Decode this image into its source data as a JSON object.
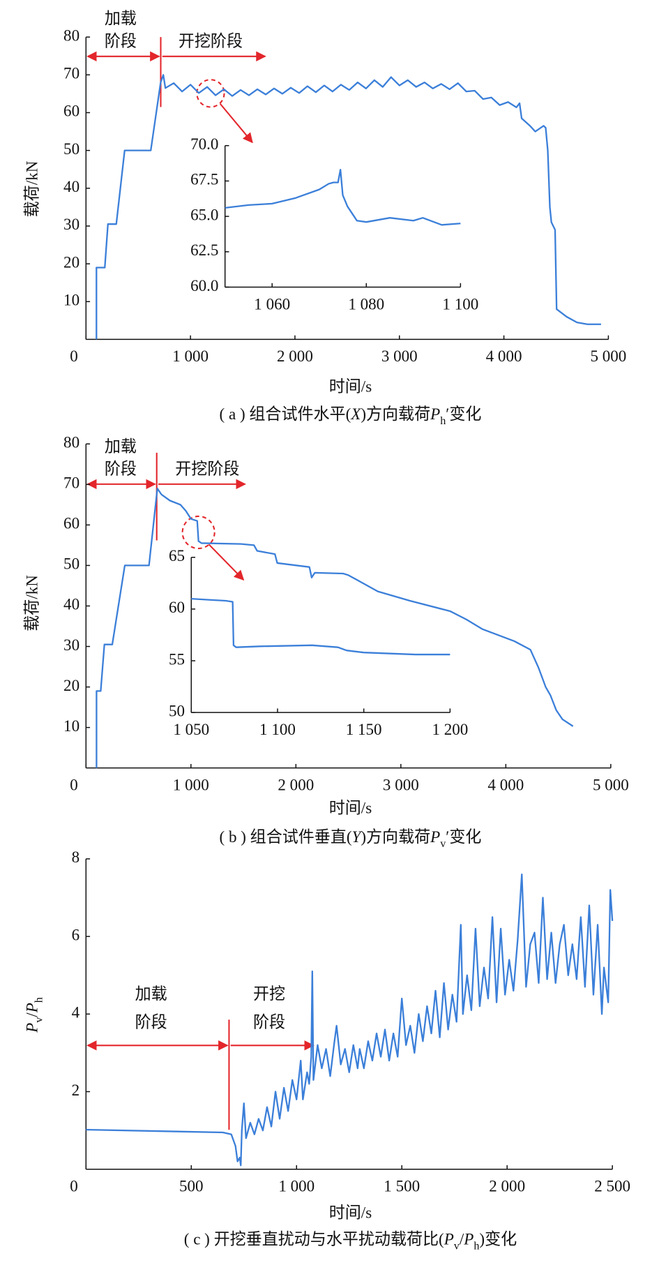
{
  "chart_data": [
    {
      "type": "line",
      "color": "#3b7fd9",
      "caption": [
        {
          "text": "( a ) 组合试件水平("
        },
        {
          "text": "X",
          "style": "italic"
        },
        {
          "text": ")方向载荷"
        },
        {
          "text": "P",
          "style": "italic"
        },
        {
          "text": "h",
          "style": "sub"
        },
        {
          "text": "′"
        },
        {
          "text": "变化"
        }
      ],
      "xlabel": [
        {
          "text": "时间/s"
        }
      ],
      "ylabel": [
        {
          "text": "载荷/kN"
        }
      ],
      "annotations": [
        "加载",
        "阶段",
        "开挖阶段"
      ],
      "xlim": [
        0,
        5000
      ],
      "ylim": [
        0,
        80
      ],
      "xticks": [
        0,
        {
          "value": 1000,
          "label": "1 000"
        },
        {
          "value": 2000,
          "label": "2 000"
        },
        {
          "value": 3000,
          "label": "3 000"
        },
        {
          "value": 4000,
          "label": "4 000"
        },
        {
          "value": 5000,
          "label": "5 000"
        }
      ],
      "yticks": [
        10,
        20,
        30,
        40,
        50,
        60,
        70,
        80
      ],
      "x": [
        100,
        100,
        180,
        210,
        290,
        370,
        620,
        715,
        740,
        760,
        840,
        920,
        1000,
        1080,
        1160,
        1240,
        1320,
        1400,
        1480,
        1560,
        1640,
        1720,
        1800,
        1880,
        1960,
        2040,
        2120,
        2200,
        2280,
        2360,
        2440,
        2520,
        2600,
        2680,
        2760,
        2840,
        2920,
        3000,
        3080,
        3160,
        3240,
        3320,
        3400,
        3480,
        3560,
        3640,
        3720,
        3800,
        3880,
        3960,
        4040,
        4120,
        4150,
        4170,
        4250,
        4300,
        4380,
        4400,
        4420,
        4440,
        4455,
        4490,
        4505,
        4600,
        4700,
        4800,
        4930
      ],
      "values": [
        0,
        19,
        19,
        30.5,
        30.5,
        50,
        50,
        68,
        70,
        66.5,
        67.8,
        65.6,
        67.4,
        65.2,
        66.8,
        64.6,
        66.2,
        64.4,
        66.0,
        64.6,
        66.2,
        64.8,
        66.4,
        65.0,
        66.6,
        65.2,
        67.0,
        65.4,
        67.2,
        65.6,
        67.4,
        66.0,
        68.0,
        66.4,
        68.6,
        66.8,
        69.4,
        67.2,
        68.6,
        66.8,
        68.0,
        66.4,
        67.6,
        66.2,
        67.8,
        65.6,
        65.8,
        63.6,
        64.0,
        62.0,
        62.8,
        61.4,
        62.5,
        58.5,
        56.5,
        55,
        56.5,
        56,
        50,
        35,
        31,
        29,
        8,
        6,
        4.5,
        4,
        4
      ],
      "inset": {
        "xlim": [
          1050,
          1100
        ],
        "ylim": [
          60,
          70
        ],
        "xticks": [
          {
            "value": 1060,
            "label": "1 060"
          },
          {
            "value": 1080,
            "label": "1 080"
          },
          {
            "value": 1100,
            "label": "1 100"
          }
        ],
        "yticks": [
          {
            "value": 60,
            "label": "60.0"
          },
          62.5,
          {
            "value": 65,
            "label": "65.0"
          },
          67.5,
          {
            "value": 70,
            "label": "70.0"
          }
        ],
        "x": [
          1050,
          1055,
          1060,
          1065,
          1070,
          1072,
          1073,
          1074,
          1074.5,
          1075,
          1076,
          1078,
          1080,
          1085,
          1090,
          1092,
          1096,
          1100
        ],
        "values": [
          65.6,
          65.8,
          65.9,
          66.3,
          66.9,
          67.3,
          67.4,
          67.4,
          68.3,
          66.5,
          65.7,
          64.7,
          64.6,
          64.9,
          64.7,
          64.9,
          64.4,
          64.5
        ]
      }
    },
    {
      "type": "line",
      "color": "#3b7fd9",
      "caption": [
        {
          "text": "( b ) 组合试件垂直("
        },
        {
          "text": "Y",
          "style": "italic"
        },
        {
          "text": ")方向载荷"
        },
        {
          "text": "P",
          "style": "italic"
        },
        {
          "text": "v",
          "style": "sub"
        },
        {
          "text": "′"
        },
        {
          "text": "变化"
        }
      ],
      "xlabel": [
        {
          "text": "时间/s"
        }
      ],
      "ylabel": [
        {
          "text": "载荷/kN"
        }
      ],
      "annotations": [
        "加载",
        "阶段",
        "开挖阶段"
      ],
      "xlim": [
        0,
        5000
      ],
      "ylim": [
        0,
        80
      ],
      "xticks": [
        0,
        {
          "value": 1000,
          "label": "1 000"
        },
        {
          "value": 2000,
          "label": "2 000"
        },
        {
          "value": 3000,
          "label": "3 000"
        },
        {
          "value": 4000,
          "label": "4 000"
        },
        {
          "value": 5000,
          "label": "5 000"
        }
      ],
      "yticks": [
        10,
        20,
        30,
        40,
        50,
        60,
        70,
        80
      ],
      "x": [
        100,
        100,
        140,
        175,
        250,
        370,
        600,
        680,
        720,
        800,
        900,
        950,
        1000,
        1060,
        1072,
        1100,
        1478,
        1600,
        1631,
        1800,
        1822,
        2129,
        2150,
        2180,
        2450,
        2500,
        2780,
        3086,
        3469,
        3622,
        3775,
        4081,
        4234,
        4311,
        4380,
        4426,
        4480,
        4540,
        4640
      ],
      "values": [
        0,
        19,
        19,
        30.5,
        30.5,
        50,
        50,
        69,
        67.5,
        66,
        65,
        63.5,
        61.5,
        61,
        56,
        55.5,
        55.3,
        55,
        53.6,
        52.8,
        50.6,
        49.6,
        47,
        48.2,
        48,
        47.6,
        43.6,
        41.3,
        38.7,
        36.7,
        34.3,
        31.3,
        29.2,
        24.8,
        20,
        17.9,
        14.3,
        12,
        10.3
      ],
      "inset": {
        "xlim": [
          1050,
          1200
        ],
        "ylim": [
          50,
          65
        ],
        "xticks": [
          {
            "value": 1050,
            "label": "1 050"
          },
          {
            "value": 1100,
            "label": "1 100"
          },
          {
            "value": 1150,
            "label": "1 150"
          },
          {
            "value": 1200,
            "label": "1 200"
          }
        ],
        "yticks": [
          50,
          55,
          60,
          65
        ],
        "x": [
          1050,
          1060,
          1070,
          1074,
          1074.5,
          1076,
          1090,
          1120,
          1135,
          1140,
          1150,
          1180,
          1200
        ],
        "values": [
          61,
          60.9,
          60.8,
          60.7,
          56.5,
          56.3,
          56.4,
          56.5,
          56.3,
          56,
          55.8,
          55.6,
          55.6
        ]
      }
    },
    {
      "type": "line",
      "color": "#3b7fd9",
      "caption": [
        {
          "text": "( c ) 开挖垂直扰动与水平扰动载荷比("
        },
        {
          "text": "P",
          "style": "italic"
        },
        {
          "text": "v",
          "style": "sub"
        },
        {
          "text": "/"
        },
        {
          "text": "P",
          "style": "italic"
        },
        {
          "text": "h",
          "style": "sub"
        },
        {
          "text": ")变化"
        }
      ],
      "xlabel": [
        {
          "text": "时间/s"
        }
      ],
      "ylabel": [
        {
          "text": "P",
          "style": "italic"
        },
        {
          "text": "v",
          "style": "sub"
        },
        {
          "text": "/"
        },
        {
          "text": "P",
          "style": "italic"
        },
        {
          "text": "h",
          "style": "sub"
        }
      ],
      "annotations": [
        "加载",
        "阶段",
        "开挖",
        "阶段"
      ],
      "xlim": [
        0,
        2500
      ],
      "ylim": [
        0,
        8
      ],
      "xticks": [
        0,
        500,
        {
          "value": 1000,
          "label": "1 000"
        },
        {
          "value": 1500,
          "label": "1 500"
        },
        {
          "value": 2000,
          "label": "2 000"
        },
        {
          "value": 2500,
          "label": "2 500"
        }
      ],
      "yticks": [
        2,
        4,
        6,
        8
      ],
      "x": [
        0,
        650,
        690,
        710,
        720,
        730,
        735,
        740,
        750,
        760,
        780,
        800,
        820,
        840,
        860,
        880,
        900,
        920,
        940,
        960,
        980,
        1000,
        1020,
        1030,
        1050,
        1060,
        1070,
        1075,
        1080,
        1100,
        1120,
        1140,
        1160,
        1180,
        1190,
        1210,
        1230,
        1250,
        1270,
        1290,
        1300,
        1320,
        1340,
        1360,
        1380,
        1400,
        1420,
        1440,
        1460,
        1480,
        1500,
        1520,
        1540,
        1560,
        1580,
        1600,
        1620,
        1640,
        1660,
        1680,
        1700,
        1720,
        1740,
        1760,
        1780,
        1790,
        1810,
        1830,
        1850,
        1870,
        1890,
        1910,
        1930,
        1950,
        1970,
        1990,
        2010,
        2030,
        2050,
        2070,
        2090,
        2110,
        2130,
        2150,
        2170,
        2190,
        2210,
        2230,
        2250,
        2270,
        2290,
        2310,
        2330,
        2350,
        2370,
        2390,
        2410,
        2430,
        2450,
        2460,
        2480,
        2490,
        2500
      ],
      "values": [
        1.02,
        0.95,
        0.9,
        0.6,
        0.2,
        0.3,
        0.1,
        1.0,
        1.7,
        0.8,
        1.2,
        0.9,
        1.3,
        1.0,
        1.6,
        1.1,
        2.0,
        1.3,
        2.1,
        1.5,
        2.3,
        1.8,
        2.8,
        1.8,
        2.5,
        2.2,
        2.9,
        5.1,
        2.3,
        3.2,
        2.6,
        3.1,
        2.4,
        3.3,
        3.7,
        2.7,
        3.1,
        2.5,
        3.2,
        2.6,
        3.1,
        2.6,
        3.3,
        2.8,
        3.5,
        2.9,
        3.6,
        2.8,
        3.5,
        2.9,
        4.4,
        3.2,
        3.7,
        3.0,
        4.0,
        3.3,
        4.2,
        3.5,
        4.6,
        3.4,
        4.8,
        3.6,
        4.5,
        3.8,
        6.3,
        4.0,
        5.0,
        4.1,
        6.2,
        4.2,
        5.2,
        4.4,
        6.5,
        4.3,
        6.2,
        4.5,
        5.4,
        4.6,
        5.9,
        7.6,
        4.7,
        5.8,
        6.1,
        4.8,
        7.0,
        4.9,
        6.1,
        4.8,
        5.8,
        6.3,
        5.0,
        5.8,
        4.9,
        6.5,
        4.7,
        6.8,
        4.5,
        6.3,
        4.0,
        5.2,
        4.3,
        7.2,
        6.4
      ]
    }
  ]
}
